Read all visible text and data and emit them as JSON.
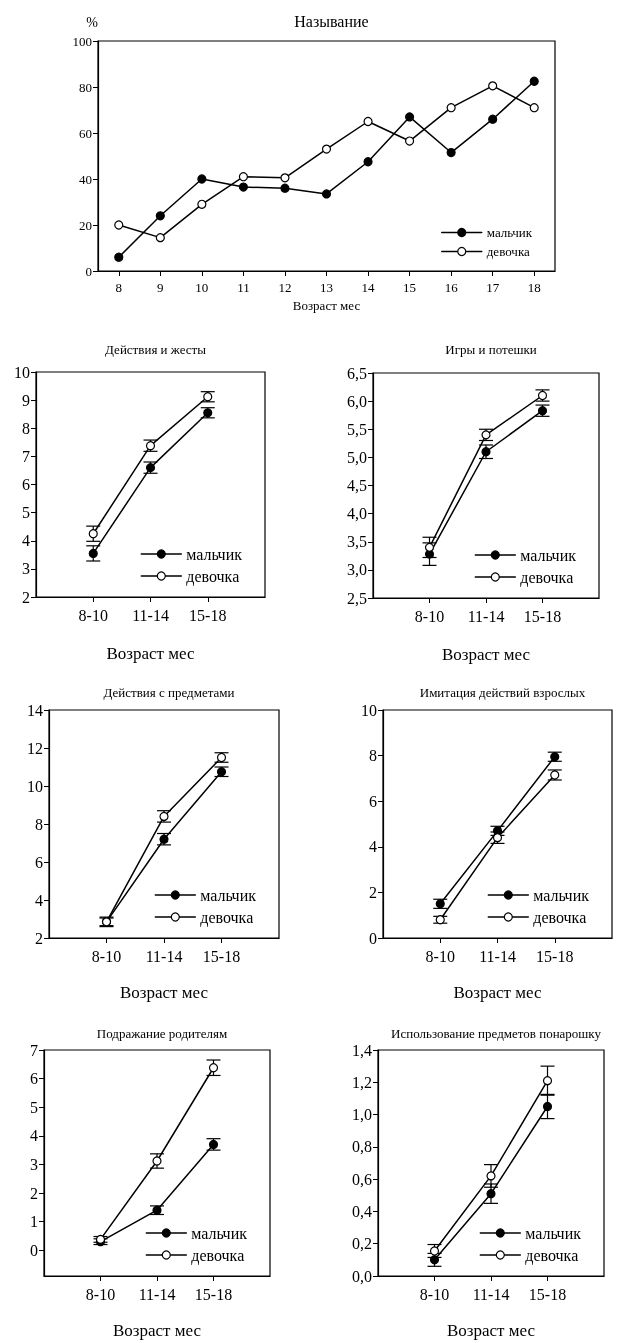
{
  "chart_data": [
    {
      "type": "line",
      "title": "Называние",
      "xlabel": "Возраст мес",
      "ylabel": "%",
      "x": [
        8,
        9,
        10,
        11,
        12,
        13,
        14,
        15,
        16,
        17,
        18
      ],
      "xlim": [
        7.5,
        18.5
      ],
      "xticks": [
        8,
        9,
        10,
        11,
        12,
        13,
        14,
        15,
        16,
        17,
        18
      ],
      "ylim": [
        0,
        100
      ],
      "yticks": [
        0,
        20,
        40,
        60,
        80,
        100
      ],
      "marker": "circle",
      "legend": "bottom right",
      "grid": false,
      "series": [
        {
          "name": "мальчик",
          "color": "#000000",
          "values": [
            6,
            24,
            40,
            36.5,
            36,
            33.5,
            47.5,
            67,
            51.5,
            66,
            82.5
          ]
        },
        {
          "name": "девочка",
          "color": "#ffffff",
          "values": [
            20,
            14.5,
            29,
            41,
            40.5,
            53,
            65,
            56.5,
            71,
            80.5,
            71
          ]
        }
      ]
    },
    {
      "type": "line",
      "title": "Действия и жесты",
      "xlabel": "Возраст мес",
      "categories": [
        "8-10",
        "11-14",
        "15-18"
      ],
      "ylim": [
        2,
        10
      ],
      "yticks": [
        2,
        3,
        4,
        5,
        6,
        7,
        8,
        9,
        10
      ],
      "marker": "circle",
      "legend": "bottom right",
      "grid": false,
      "series": [
        {
          "name": "мальчик",
          "color": "#000000",
          "values": [
            3.55,
            6.6,
            8.55
          ],
          "errors": [
            0.27,
            0.2,
            0.18
          ]
        },
        {
          "name": "девочка",
          "color": "#ffffff",
          "values": [
            4.25,
            7.38,
            9.12
          ],
          "errors": [
            0.27,
            0.2,
            0.18
          ]
        }
      ]
    },
    {
      "type": "line",
      "title": "Игры и потешки",
      "xlabel": "Возраст мес",
      "categories": [
        "8-10",
        "11-14",
        "15-18"
      ],
      "ylim": [
        2.5,
        6.5
      ],
      "yticks": [
        {
          "value": 2.5,
          "label": "2,5"
        },
        {
          "value": 3,
          "label": "3,0"
        },
        {
          "value": 3.5,
          "label": "3,5"
        },
        {
          "value": 4,
          "label": "4,0"
        },
        {
          "value": 4.5,
          "label": "4,5"
        },
        {
          "value": 5,
          "label": "5,0"
        },
        {
          "value": 5.5,
          "label": "5,5"
        },
        {
          "value": 6,
          "label": "6,0"
        },
        {
          "value": 6.5,
          "label": "6,5"
        }
      ],
      "marker": "circle",
      "legend": "bottom right",
      "grid": false,
      "series": [
        {
          "name": "мальчик",
          "color": "#000000",
          "values": [
            3.28,
            5.1,
            5.83
          ],
          "errors": [
            0.2,
            0.12,
            0.1
          ]
        },
        {
          "name": "девочка",
          "color": "#ffffff",
          "values": [
            3.4,
            5.4,
            6.1
          ],
          "errors": [
            0.18,
            0.1,
            0.1
          ]
        }
      ]
    },
    {
      "type": "line",
      "title": "Действия с предметами",
      "xlabel": "Возраст мес",
      "categories": [
        "8-10",
        "11-14",
        "15-18"
      ],
      "ylim": [
        2,
        14
      ],
      "yticks": [
        2,
        4,
        6,
        8,
        10,
        12,
        14
      ],
      "marker": "circle",
      "legend": "bottom right",
      "grid": false,
      "series": [
        {
          "name": "мальчик",
          "color": "#000000",
          "values": [
            2.85,
            7.2,
            10.75
          ],
          "errors": [
            0.25,
            0.3,
            0.25
          ]
        },
        {
          "name": "девочка",
          "color": "#ffffff",
          "values": [
            2.85,
            8.4,
            11.5
          ],
          "errors": [
            0.2,
            0.3,
            0.25
          ]
        }
      ]
    },
    {
      "type": "line",
      "title": "Имитация действий взрослых",
      "xlabel": "Возраст мес",
      "categories": [
        "8-10",
        "11-14",
        "15-18"
      ],
      "ylim": [
        0,
        10
      ],
      "yticks": [
        0,
        2,
        4,
        6,
        8,
        10
      ],
      "marker": "circle",
      "legend": "bottom right",
      "grid": false,
      "series": [
        {
          "name": "мальчик",
          "color": "#000000",
          "values": [
            1.5,
            4.7,
            7.95
          ],
          "errors": [
            0.2,
            0.2,
            0.2
          ]
        },
        {
          "name": "девочка",
          "color": "#ffffff",
          "values": [
            0.8,
            4.4,
            7.15
          ],
          "errors": [
            0.15,
            0.25,
            0.22
          ]
        }
      ]
    },
    {
      "type": "line",
      "title": "Подражание родителям",
      "xlabel": "Возраст мес",
      "categories": [
        "8-10",
        "11-14",
        "15-18"
      ],
      "ylim": [
        -0.9,
        7
      ],
      "yticks": [
        0,
        1,
        2,
        3,
        4,
        5,
        6,
        7
      ],
      "marker": "circle",
      "legend": "bottom right",
      "grid": false,
      "series": [
        {
          "name": "мальчик",
          "color": "#000000",
          "values": [
            0.3,
            1.4,
            3.7
          ],
          "errors": [
            0.1,
            0.15,
            0.2
          ]
        },
        {
          "name": "девочка",
          "color": "#ffffff",
          "values": [
            0.38,
            3.12,
            6.38
          ],
          "errors": [
            0.1,
            0.25,
            0.27
          ]
        }
      ]
    },
    {
      "type": "line",
      "title": "Использование предметов понарошку",
      "xlabel": "Возраст мес",
      "categories": [
        "8-10",
        "11-14",
        "15-18"
      ],
      "ylim": [
        0,
        1.4
      ],
      "yticks": [
        {
          "value": 0,
          "label": "0,0"
        },
        {
          "value": 0.2,
          "label": "0,2"
        },
        {
          "value": 0.4,
          "label": "0,4"
        },
        {
          "value": 0.6,
          "label": "0,6"
        },
        {
          "value": 0.8,
          "label": "0,8"
        },
        {
          "value": 1,
          "label": "1,0"
        },
        {
          "value": 1.2,
          "label": "1,2"
        },
        {
          "value": 1.4,
          "label": "1,4"
        }
      ],
      "marker": "circle",
      "legend": "bottom right",
      "grid": false,
      "series": [
        {
          "name": "мальчик",
          "color": "#000000",
          "values": [
            0.1,
            0.51,
            1.05
          ],
          "errors": [
            0.04,
            0.06,
            0.075
          ]
        },
        {
          "name": "девочка",
          "color": "#ffffff",
          "values": [
            0.155,
            0.62,
            1.21
          ],
          "errors": [
            0.04,
            0.07,
            0.09
          ]
        }
      ]
    }
  ]
}
